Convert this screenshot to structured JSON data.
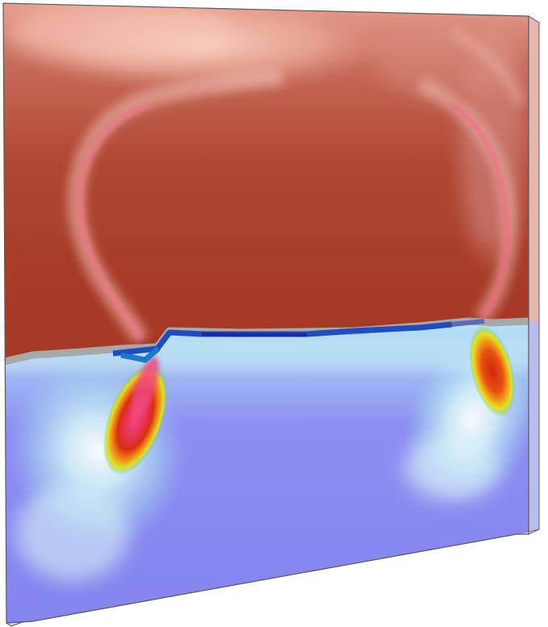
{
  "scene": {
    "colors": {
      "background": "#ffffff",
      "upper_region_dark": "#a83a28",
      "upper_region_mid": "#b8503c",
      "upper_region_light": "#f0b8a8",
      "plume_pink": "#f07080",
      "interface_gray": "#a8a8a8",
      "interface_blue": "#2050c0",
      "lower_region": "#8a8af0",
      "lower_region_light": "#c0e8f0",
      "hotspot_red": "#d03010",
      "hotspot_orange": "#f08010",
      "hotspot_yellow": "#e8e020",
      "hotspot_green": "#60d040",
      "box_edge": "#606060"
    }
  }
}
